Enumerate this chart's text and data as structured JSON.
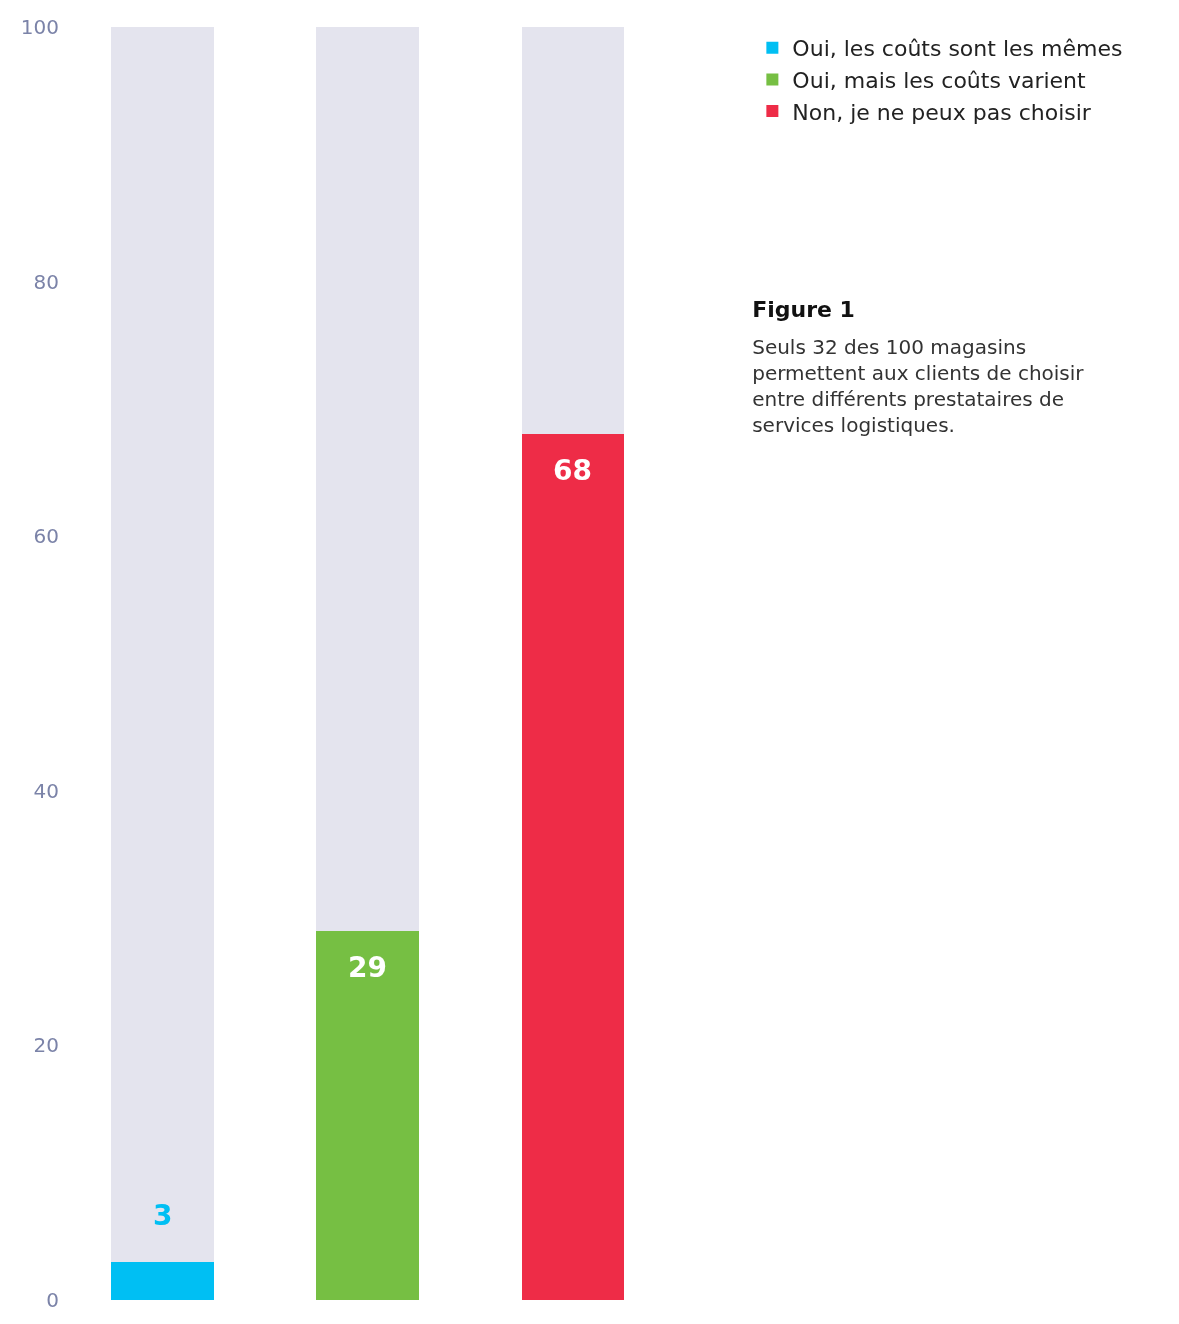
{
  "chart_data": {
    "type": "bar",
    "title": "Figure 1",
    "subtitle": "Seuls 32 des 100 magasins permettent aux clients de choisir entre différents prestataires de services logistiques.",
    "categories": [
      null,
      null,
      null
    ],
    "stacked": true,
    "series": [
      {
        "name": "Oui, les coûts sont les mêmes",
        "color": "#00bff3",
        "values": [
          3,
          null,
          null
        ],
        "value_labels": [
          "3",
          null,
          null
        ]
      },
      {
        "name": "Oui, mais les coûts varient",
        "color": "#76bf43",
        "values": [
          null,
          29,
          null
        ],
        "value_labels": [
          null,
          "29",
          null
        ]
      },
      {
        "name": "Non, je ne peux pas choisir",
        "color": "#ee2c47",
        "values": [
          null,
          null,
          68
        ],
        "value_labels": [
          null,
          null,
          "68"
        ]
      },
      {
        "color": "#e4e4ee",
        "values": [
          97,
          71,
          32
        ]
      }
    ],
    "ylim": [
      0,
      100
    ],
    "yticks": [
      0,
      20,
      40,
      60,
      80,
      100
    ],
    "legend": "top right"
  }
}
